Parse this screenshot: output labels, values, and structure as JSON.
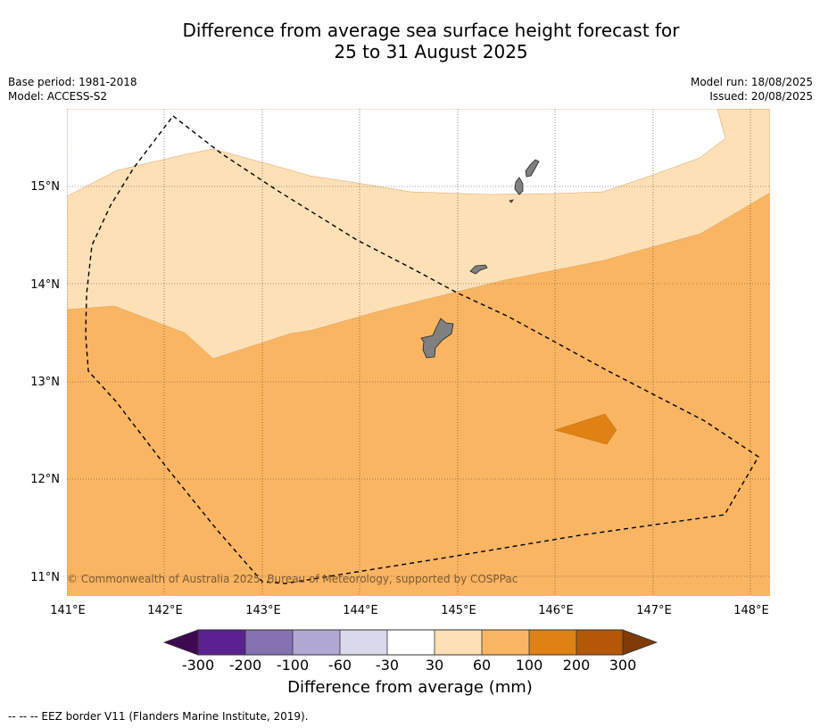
{
  "title_line1": "Difference from average sea surface height forecast for",
  "title_line2": "25 to 31 August 2025",
  "meta": {
    "base_period": "Base period: 1981-2018",
    "model": "Model: ACCESS-S2",
    "model_run": "Model run: 18/08/2025",
    "issued": "Issued: 20/08/2025"
  },
  "copyright": "© Commonwealth of Australia 2025, Bureau of Meteorology, supported by COSPPac",
  "lon_ticks": [
    "141°E",
    "142°E",
    "143°E",
    "144°E",
    "145°E",
    "146°E",
    "147°E",
    "148°E"
  ],
  "lat_ticks": [
    "15°N",
    "14°N",
    "13°N",
    "12°N",
    "11°N"
  ],
  "colorbar": {
    "label": "Difference from average (mm)",
    "tick_labels": [
      "-300",
      "-200",
      "-100",
      "-60",
      "-30",
      "30",
      "60",
      "100",
      "200",
      "300"
    ],
    "colors": [
      "#3d0a52",
      "#5a2290",
      "#8471b2",
      "#b0a7d2",
      "#d9d9ec",
      "#ffffff",
      "#fde0b6",
      "#fab562",
      "#e08213",
      "#b35806",
      "#7f3b08"
    ]
  },
  "legend_note": "--  --  -- EEZ border V11 (Flanders Marine Institute, 2019)."
}
